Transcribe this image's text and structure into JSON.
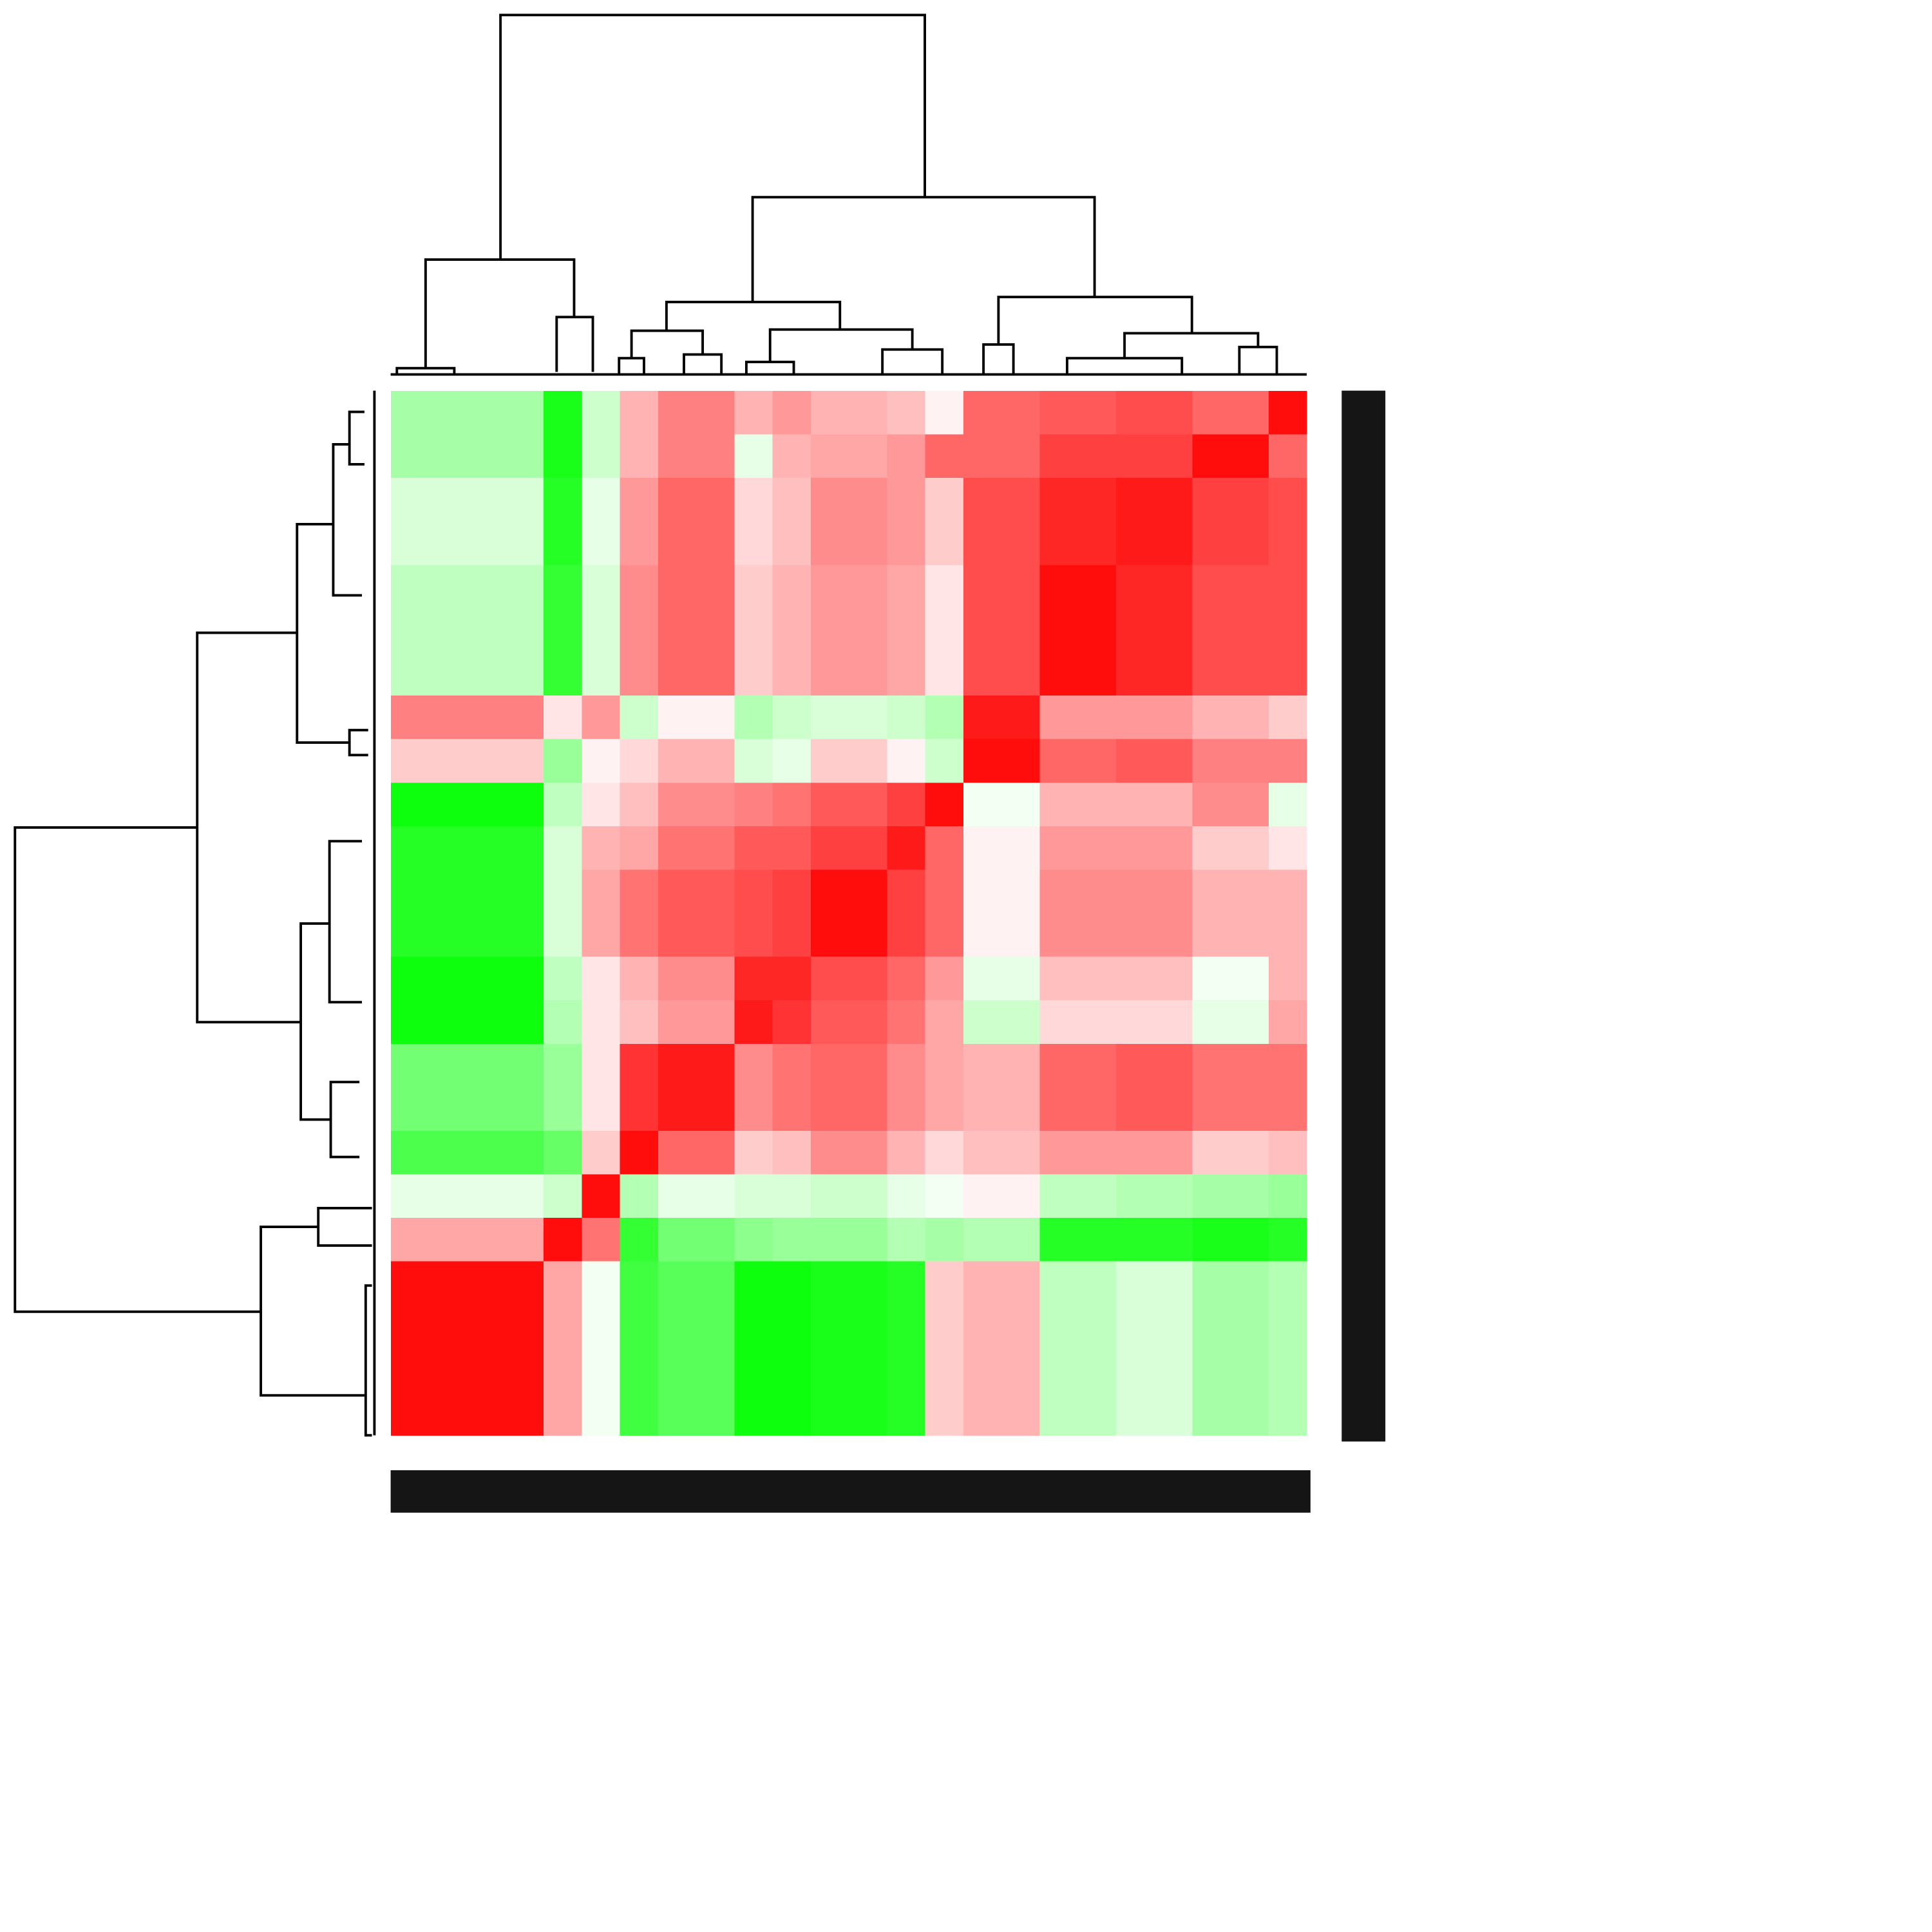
{
  "chart_data": {
    "type": "heatmap",
    "zlim": [
      -1,
      1
    ],
    "colors": [
      "#00ff00",
      "#ffffff",
      "#ff0000"
    ],
    "values": [
      [
        -0.35,
        -0.35,
        -0.35,
        -0.35,
        -0.9,
        -0.2,
        0.3,
        0.5,
        0.5,
        0.3,
        0.4,
        0.3,
        0.3,
        0.25,
        0.05,
        0.6,
        0.6,
        0.65,
        0.65,
        0.7,
        0.7,
        0.6,
        0.6,
        0.95
      ],
      [
        -0.35,
        -0.35,
        -0.35,
        -0.35,
        -0.9,
        -0.2,
        0.3,
        0.5,
        0.5,
        -0.1,
        0.3,
        0.35,
        0.35,
        0.4,
        0.6,
        0.6,
        0.6,
        0.75,
        0.75,
        0.75,
        0.75,
        0.95,
        0.95,
        0.6
      ],
      [
        -0.15,
        -0.15,
        -0.15,
        -0.15,
        -0.85,
        -0.1,
        0.4,
        0.6,
        0.6,
        0.15,
        0.25,
        0.45,
        0.45,
        0.4,
        0.2,
        0.7,
        0.7,
        0.85,
        0.85,
        0.9,
        0.9,
        0.75,
        0.75,
        0.7
      ],
      [
        -0.15,
        -0.15,
        -0.15,
        -0.15,
        -0.85,
        -0.1,
        0.4,
        0.6,
        0.6,
        0.15,
        0.25,
        0.45,
        0.45,
        0.4,
        0.2,
        0.7,
        0.7,
        0.85,
        0.85,
        0.9,
        0.9,
        0.75,
        0.75,
        0.7
      ],
      [
        -0.25,
        -0.25,
        -0.25,
        -0.25,
        -0.8,
        -0.15,
        0.45,
        0.6,
        0.6,
        0.2,
        0.3,
        0.4,
        0.4,
        0.35,
        0.1,
        0.7,
        0.7,
        0.95,
        0.95,
        0.85,
        0.85,
        0.7,
        0.7,
        0.7
      ],
      [
        -0.25,
        -0.25,
        -0.25,
        -0.25,
        -0.8,
        -0.15,
        0.45,
        0.6,
        0.6,
        0.2,
        0.3,
        0.4,
        0.4,
        0.35,
        0.1,
        0.7,
        0.7,
        0.95,
        0.95,
        0.85,
        0.85,
        0.7,
        0.7,
        0.7
      ],
      [
        -0.25,
        -0.25,
        -0.25,
        -0.25,
        -0.8,
        -0.15,
        0.45,
        0.6,
        0.6,
        0.2,
        0.3,
        0.4,
        0.4,
        0.35,
        0.1,
        0.7,
        0.7,
        0.95,
        0.95,
        0.85,
        0.85,
        0.7,
        0.7,
        0.7
      ],
      [
        0.5,
        0.5,
        0.5,
        0.5,
        0.1,
        0.4,
        -0.2,
        0.05,
        0.05,
        -0.3,
        -0.2,
        -0.15,
        -0.15,
        -0.2,
        -0.3,
        0.9,
        0.9,
        0.4,
        0.4,
        0.4,
        0.4,
        0.3,
        0.3,
        0.2
      ],
      [
        0.2,
        0.2,
        0.2,
        0.2,
        -0.4,
        0.05,
        0.15,
        0.3,
        0.3,
        -0.15,
        -0.1,
        0.2,
        0.2,
        0.05,
        -0.2,
        0.95,
        0.95,
        0.6,
        0.6,
        0.65,
        0.65,
        0.5,
        0.5,
        0.5
      ],
      [
        -0.95,
        -0.95,
        -0.95,
        -0.95,
        -0.25,
        0.1,
        0.25,
        0.45,
        0.45,
        0.5,
        0.55,
        0.65,
        0.65,
        0.75,
        0.95,
        -0.05,
        -0.05,
        0.3,
        0.3,
        0.3,
        0.3,
        0.45,
        0.45,
        -0.1
      ],
      [
        -0.85,
        -0.85,
        -0.85,
        -0.85,
        -0.15,
        0.3,
        0.35,
        0.55,
        0.55,
        0.65,
        0.65,
        0.75,
        0.75,
        0.9,
        0.6,
        0.05,
        0.05,
        0.4,
        0.4,
        0.4,
        0.4,
        0.2,
        0.2,
        0.1
      ],
      [
        -0.85,
        -0.85,
        -0.85,
        -0.85,
        -0.15,
        0.35,
        0.55,
        0.65,
        0.65,
        0.7,
        0.75,
        0.95,
        0.95,
        0.75,
        0.6,
        0.05,
        0.05,
        0.45,
        0.45,
        0.45,
        0.45,
        0.3,
        0.3,
        0.3
      ],
      [
        -0.85,
        -0.85,
        -0.85,
        -0.85,
        -0.15,
        0.35,
        0.55,
        0.65,
        0.65,
        0.7,
        0.75,
        0.95,
        0.95,
        0.75,
        0.6,
        0.05,
        0.05,
        0.45,
        0.45,
        0.45,
        0.45,
        0.3,
        0.3,
        0.3
      ],
      [
        -0.95,
        -0.95,
        -0.95,
        -0.95,
        -0.25,
        0.1,
        0.3,
        0.45,
        0.45,
        0.85,
        0.85,
        0.7,
        0.7,
        0.6,
        0.4,
        -0.1,
        -0.1,
        0.25,
        0.25,
        0.25,
        0.25,
        -0.05,
        -0.05,
        0.3
      ],
      [
        -0.95,
        -0.95,
        -0.95,
        -0.95,
        -0.3,
        0.1,
        0.25,
        0.4,
        0.4,
        0.9,
        0.8,
        0.65,
        0.65,
        0.55,
        0.35,
        -0.2,
        -0.2,
        0.15,
        0.15,
        0.15,
        0.15,
        -0.1,
        -0.1,
        0.35
      ],
      [
        -0.55,
        -0.55,
        -0.55,
        -0.55,
        -0.4,
        0.1,
        0.8,
        0.9,
        0.9,
        0.45,
        0.55,
        0.6,
        0.6,
        0.45,
        0.35,
        0.3,
        0.3,
        0.6,
        0.6,
        0.65,
        0.65,
        0.55,
        0.55,
        0.55
      ],
      [
        -0.55,
        -0.55,
        -0.55,
        -0.55,
        -0.4,
        0.1,
        0.8,
        0.9,
        0.9,
        0.45,
        0.55,
        0.6,
        0.6,
        0.45,
        0.35,
        0.3,
        0.3,
        0.6,
        0.6,
        0.65,
        0.65,
        0.55,
        0.55,
        0.55
      ],
      [
        -0.7,
        -0.7,
        -0.7,
        -0.7,
        -0.6,
        0.2,
        0.95,
        0.6,
        0.6,
        0.2,
        0.25,
        0.45,
        0.45,
        0.3,
        0.15,
        0.25,
        0.25,
        0.4,
        0.4,
        0.4,
        0.4,
        0.2,
        0.2,
        0.25
      ],
      [
        -0.1,
        -0.1,
        -0.1,
        -0.1,
        -0.2,
        0.95,
        -0.3,
        -0.1,
        -0.1,
        -0.15,
        -0.15,
        -0.2,
        -0.2,
        -0.1,
        -0.05,
        0.05,
        0.05,
        -0.25,
        -0.25,
        -0.3,
        -0.3,
        -0.35,
        -0.35,
        -0.4
      ],
      [
        0.35,
        0.35,
        0.35,
        0.35,
        0.95,
        0.55,
        -0.8,
        -0.55,
        -0.55,
        -0.45,
        -0.4,
        -0.4,
        -0.4,
        -0.3,
        -0.35,
        -0.3,
        -0.3,
        -0.85,
        -0.85,
        -0.85,
        -0.85,
        -0.9,
        -0.9,
        -0.85
      ],
      [
        0.95,
        0.95,
        0.95,
        0.95,
        0.35,
        -0.05,
        -0.75,
        -0.65,
        -0.65,
        -0.95,
        -0.95,
        -0.9,
        -0.9,
        -0.85,
        0.2,
        0.3,
        0.3,
        -0.25,
        -0.25,
        -0.15,
        -0.15,
        -0.35,
        -0.35,
        -0.3
      ],
      [
        0.95,
        0.95,
        0.95,
        0.95,
        0.35,
        -0.05,
        -0.75,
        -0.65,
        -0.65,
        -0.95,
        -0.95,
        -0.9,
        -0.9,
        -0.85,
        0.2,
        0.3,
        0.3,
        -0.25,
        -0.25,
        -0.15,
        -0.15,
        -0.35,
        -0.35,
        -0.3
      ],
      [
        0.95,
        0.95,
        0.95,
        0.95,
        0.35,
        -0.05,
        -0.75,
        -0.65,
        -0.65,
        -0.95,
        -0.95,
        -0.9,
        -0.9,
        -0.85,
        0.2,
        0.3,
        0.3,
        -0.25,
        -0.25,
        -0.15,
        -0.15,
        -0.35,
        -0.35,
        -0.3
      ],
      [
        0.95,
        0.95,
        0.95,
        0.95,
        0.35,
        -0.05,
        -0.75,
        -0.65,
        -0.65,
        -0.95,
        -0.95,
        -0.9,
        -0.9,
        -0.85,
        0.2,
        0.3,
        0.3,
        -0.25,
        -0.25,
        -0.15,
        -0.15,
        -0.35,
        -0.35,
        -0.3
      ]
    ]
  }
}
